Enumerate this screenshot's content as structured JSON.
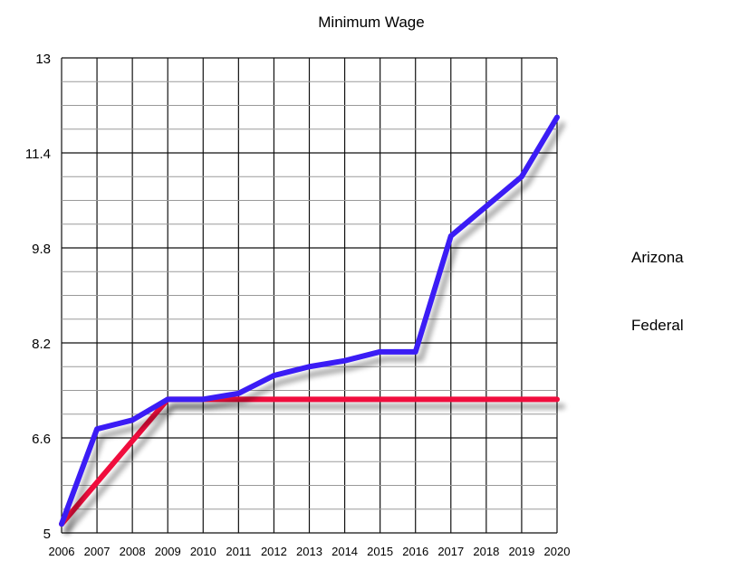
{
  "chart_data": {
    "type": "line",
    "title": "Minimum Wage",
    "xlabel": "",
    "ylabel": "",
    "x": [
      "2006",
      "2007",
      "2008",
      "2009",
      "2010",
      "2011",
      "2012",
      "2013",
      "2014",
      "2015",
      "2016",
      "2017",
      "2018",
      "2019",
      "2020"
    ],
    "ylim": [
      5,
      13
    ],
    "yticks": [
      "5",
      "6.6",
      "8.2",
      "9.8",
      "11.4",
      "13"
    ],
    "grid": true,
    "legend_position": "right",
    "series": [
      {
        "name": "Arizona",
        "color": "#3a1ff5",
        "values": [
          5.15,
          6.75,
          6.9,
          7.25,
          7.25,
          7.35,
          7.65,
          7.8,
          7.9,
          8.05,
          8.05,
          10.0,
          10.5,
          11.0,
          12.0
        ]
      },
      {
        "name": "Federal",
        "color": "#f0103c",
        "values": [
          5.15,
          5.85,
          6.55,
          7.25,
          7.25,
          7.25,
          7.25,
          7.25,
          7.25,
          7.25,
          7.25,
          7.25,
          7.25,
          7.25,
          7.25
        ]
      }
    ]
  }
}
